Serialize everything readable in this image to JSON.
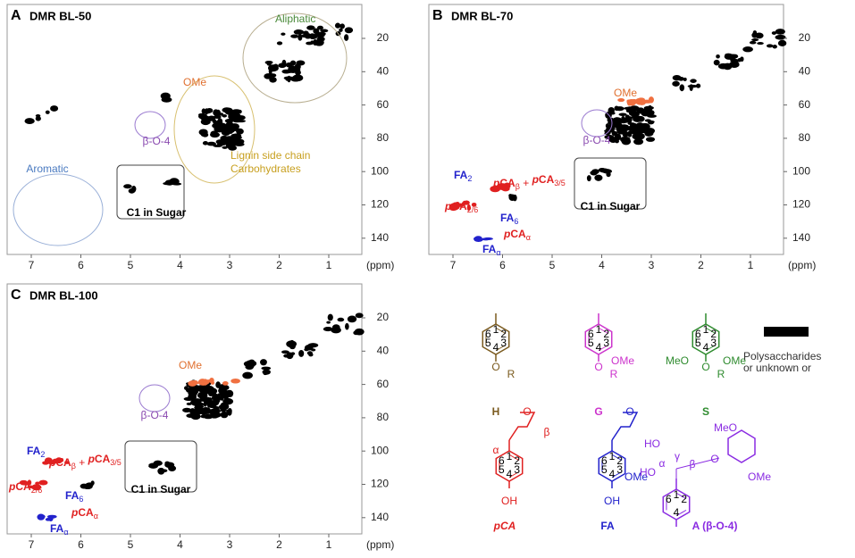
{
  "panels": [
    {
      "letter": "A",
      "title": "DMR BL-50",
      "xticks": [
        7,
        6,
        5,
        4,
        3,
        2,
        1
      ],
      "yticks": [
        20,
        40,
        60,
        80,
        100,
        120,
        140
      ],
      "unit": "(ppm)",
      "annotations": [
        [
          "Aliphatic"
        ],
        [
          "OMe"
        ],
        [
          "β-O-4"
        ],
        [
          "Lignin side chain"
        ],
        [
          "Carbohydrates"
        ],
        [
          "Aromatic"
        ],
        [
          "C1 in Sugar"
        ]
      ]
    },
    {
      "letter": "B",
      "title": "DMR BL-70",
      "xticks": [
        7,
        6,
        5,
        4,
        3,
        2,
        1
      ],
      "yticks": [
        20,
        40,
        60,
        80,
        100,
        120,
        140
      ],
      "unit": "(ppm)",
      "annotations": [
        [
          "OMe"
        ],
        [
          "β-O-4"
        ],
        [
          "C1 in Sugar"
        ],
        [
          "FA",
          "2"
        ],
        [
          "p",
          "CA",
          "β",
          " + ",
          "p",
          "CA",
          "3/5"
        ],
        [
          "p",
          "CA",
          "2/6"
        ],
        [
          "FA",
          "6"
        ],
        [
          "p",
          "CA",
          "α"
        ],
        [
          "FA",
          "α"
        ]
      ]
    },
    {
      "letter": "C",
      "title": "DMR BL-100",
      "xticks": [
        7,
        6,
        5,
        4,
        3,
        2,
        1
      ],
      "yticks": [
        20,
        40,
        60,
        80,
        100,
        120,
        140
      ],
      "unit": "(ppm)",
      "annotations": [
        [
          "OMe"
        ],
        [
          "β-O-4"
        ],
        [
          "C1 in Sugar"
        ],
        [
          "FA",
          "2"
        ],
        [
          "p",
          "CA",
          "β",
          " + ",
          "p",
          "CA",
          "3/5"
        ],
        [
          "p",
          "CA",
          "2/6"
        ],
        [
          "FA",
          "6"
        ],
        [
          "p",
          "CA",
          "α"
        ],
        [
          "FA",
          "α"
        ]
      ]
    }
  ],
  "structures": [
    {
      "name": "H",
      "color": "#7a5a1e",
      "numbers": [
        "1",
        "2",
        "3",
        "4",
        "5",
        "6"
      ],
      "subs": [
        "O",
        "R"
      ]
    },
    {
      "name": "G",
      "color": "#cc33cc",
      "numbers": [
        "1",
        "2",
        "3",
        "4",
        "5",
        "6"
      ],
      "subs": [
        "OMe",
        "O",
        "R"
      ]
    },
    {
      "name": "S",
      "color": "#2e8b2e",
      "numbers": [
        "1",
        "2",
        "3",
        "4",
        "5",
        "6"
      ],
      "subs": [
        "MeO",
        "OMe",
        "O",
        "R"
      ]
    },
    {
      "name": "pCA",
      "color": "#e02020",
      "numbers": [
        "1",
        "2",
        "3",
        "4",
        "5",
        "6"
      ],
      "subs": [
        "O",
        "α",
        "β",
        "OH"
      ]
    },
    {
      "name": "FA",
      "color": "#2222cc",
      "numbers": [
        "1",
        "2",
        "3",
        "4",
        "5",
        "6"
      ],
      "subs": [
        "O",
        "OMe",
        "OH"
      ]
    },
    {
      "name": "A (β-O-4)",
      "color": "#8a2be2",
      "numbers": [
        "1",
        "2",
        "4",
        "6"
      ],
      "subs": [
        "HO",
        "γ",
        "HO",
        "α",
        "β",
        "O",
        "MeO",
        "OMe"
      ]
    }
  ],
  "legend_note": [
    "Polysaccharides",
    "or unknown or"
  ]
}
